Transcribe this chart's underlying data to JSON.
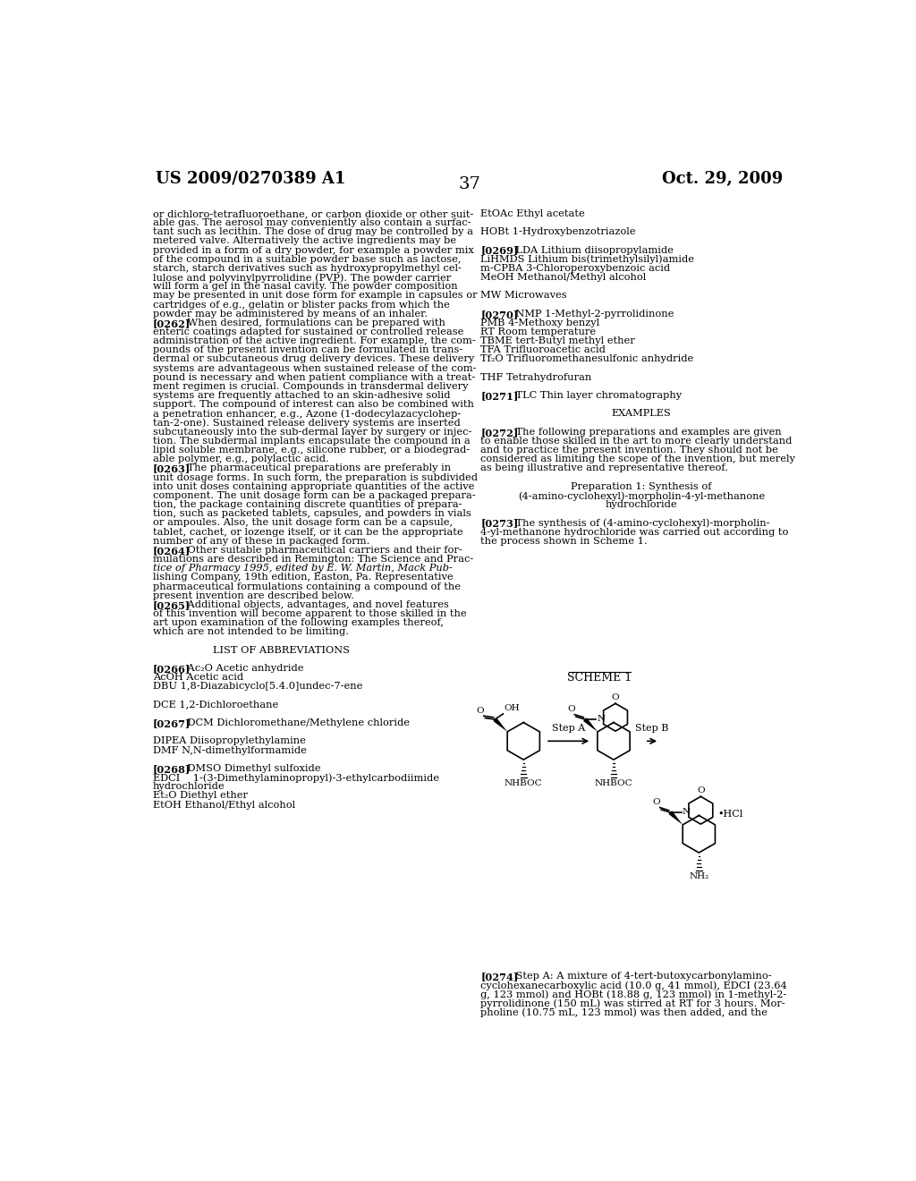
{
  "page_number": "37",
  "patent_number": "US 2009/0270389 A1",
  "patent_date": "Oct. 29, 2009",
  "background_color": "#ffffff",
  "text_color": "#000000",
  "left_column_text": [
    "or dichloro-tetrafluoroethane, or carbon dioxide or other suit-",
    "able gas. The aerosol may conveniently also contain a surfac-",
    "tant such as lecithin. The dose of drug may be controlled by a",
    "metered valve. Alternatively the active ingredients may be",
    "provided in a form of a dry powder, for example a powder mix",
    "of the compound in a suitable powder base such as lactose,",
    "starch, starch derivatives such as hydroxypropylmethyl cel-",
    "lulose and polyvinylpyrrolidine (PVP). The powder carrier",
    "will form a gel in the nasal cavity. The powder composition",
    "may be presented in unit dose form for example in capsules or",
    "cartridges of e.g., gelatin or blister packs from which the",
    "powder may be administered by means of an inhaler.",
    "[0262]    When desired, formulations can be prepared with",
    "enteric coatings adapted for sustained or controlled release",
    "administration of the active ingredient. For example, the com-",
    "pounds of the present invention can be formulated in trans-",
    "dermal or subcutaneous drug delivery devices. These delivery",
    "systems are advantageous when sustained release of the com-",
    "pound is necessary and when patient compliance with a treat-",
    "ment regimen is crucial. Compounds in transdermal delivery",
    "systems are frequently attached to an skin-adhesive solid",
    "support. The compound of interest can also be combined with",
    "a penetration enhancer, e.g., Azone (1-dodecylazacyclohep-",
    "tan-2-one). Sustained release delivery systems are inserted",
    "subcutaneously into the sub-dermal layer by surgery or injec-",
    "tion. The subdermal implants encapsulate the compound in a",
    "lipid soluble membrane, e.g., silicone rubber, or a biodegrad-",
    "able polymer, e.g., polylactic acid.",
    "[0263]    The pharmaceutical preparations are preferably in",
    "unit dosage forms. In such form, the preparation is subdivided",
    "into unit doses containing appropriate quantities of the active",
    "component. The unit dosage form can be a packaged prepara-",
    "tion, the package containing discrete quantities of prepara-",
    "tion, such as packeted tablets, capsules, and powders in vials",
    "or ampoules. Also, the unit dosage form can be a capsule,",
    "tablet, cachet, or lozenge itself, or it can be the appropriate",
    "number of any of these in packaged form.",
    "[0264]    Other suitable pharmaceutical carriers and their for-",
    "mulations are described in Remington: The Science and Prac-",
    "tice of Pharmacy 1995, edited by E. W. Martin, Mack Pub-",
    "lishing Company, 19th edition, Easton, Pa. Representative",
    "pharmaceutical formulations containing a compound of the",
    "present invention are described below.",
    "[0265]    Additional objects, advantages, and novel features",
    "of this invention will become apparent to those skilled in the",
    "art upon examination of the following examples thereof,",
    "which are not intended to be limiting.",
    "",
    "LIST OF ABBREVIATIONS",
    "",
    "[0266]    Ac₂O Acetic anhydride",
    "AcOH Acetic acid",
    "DBU 1,8-Diazabicyclo[5.4.0]undec-7-ene",
    "",
    "DCE 1,2-Dichloroethane",
    "",
    "[0267]    DCM Dichloromethane/Methylene chloride",
    "",
    "DIPEA Diisopropylethylamine",
    "DMF N,N-dimethylformamide",
    "",
    "[0268]    DMSO Dimethyl sulfoxide",
    "EDCI    1-(3-Dimethylaminopropyl)-3-ethylcarbodiimide",
    "hydrochloride",
    "Et₂O Diethyl ether",
    "EtOH Ethanol/Ethyl alcohol"
  ],
  "right_column_text": [
    "EtOAc Ethyl acetate",
    "",
    "HOBt 1-Hydroxybenzotriazole",
    "",
    "[0269]    LDA Lithium diisopropylamide",
    "LiHMDS Lithium bis(trimethylsilyl)amide",
    "m-CPBA 3-Chloroperoxybenzoic acid",
    "MeOH Methanol/Methyl alcohol",
    "",
    "MW Microwaves",
    "",
    "[0270]    NMP 1-Methyl-2-pyrrolidinone",
    "PMB 4-Methoxy benzyl",
    "RT Room temperature",
    "TBME tert-Butyl methyl ether",
    "TFA Trifluoroacetic acid",
    "Tf₂O Trifluoromethanesulfonic anhydride",
    "",
    "THF Tetrahydrofuran",
    "",
    "[0271]    TLC Thin layer chromatography",
    "",
    "EXAMPLES",
    "",
    "[0272]    The following preparations and examples are given",
    "to enable those skilled in the art to more clearly understand",
    "and to practice the present invention. They should not be",
    "considered as limiting the scope of the invention, but merely",
    "as being illustrative and representative thereof.",
    "",
    "Preparation 1: Synthesis of",
    "(4-amino-cyclohexyl)-morpholin-4-yl-methanone",
    "hydrochloride",
    "",
    "[0273]    The synthesis of (4-amino-cyclohexyl)-morpholin-",
    "4-yl-methanone hydrochloride was carried out according to",
    "the process shown in Scheme 1."
  ],
  "bottom_right_text": [
    "[0274]    Step A: A mixture of 4-tert-butoxycarbonylamino-",
    "cyclohexanecarboxylic acid (10.0 g, 41 mmol), EDCI (23.64",
    "g, 123 mmol) and HOBt (18.88 g, 123 mmol) in 1-methyl-2-",
    "pyrrolidinone (150 mL) was stirred at RT for 3 hours. Mor-",
    "pholine (10.75 mL, 123 mmol) was then added, and the"
  ],
  "italic_line": "tice of Pharmacy 1995, edited by E. W. Martin, Mack Pub-"
}
